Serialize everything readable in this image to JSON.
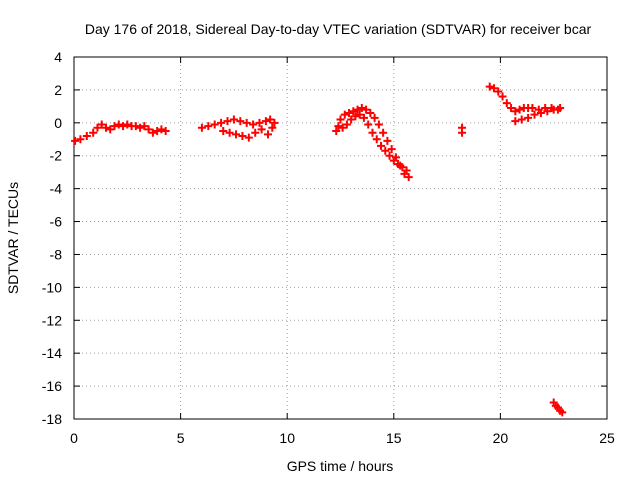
{
  "chart_data": {
    "type": "scatter",
    "title": "Day 176 of 2018, Sidereal Day-to-day VTEC variation (SDTVAR) for receiver bcar",
    "xlabel": "GPS time / hours",
    "ylabel": "SDTVAR / TECUs",
    "xlim": [
      0,
      25
    ],
    "ylim": [
      -18,
      4
    ],
    "xticks": [
      0,
      5,
      10,
      15,
      20,
      25
    ],
    "yticks": [
      -18,
      -16,
      -14,
      -12,
      -10,
      -8,
      -6,
      -4,
      -2,
      0,
      2,
      4
    ],
    "grid": true,
    "marker": "+",
    "colors": {
      "series": "#ff0000",
      "grid": "#a0a0a0",
      "axis": "#000000"
    },
    "series": [
      {
        "name": "bcar",
        "x": [
          0.05,
          0.3,
          0.6,
          0.9,
          1.1,
          1.3,
          1.5,
          1.7,
          1.9,
          2.1,
          2.3,
          2.5,
          2.7,
          2.9,
          3.1,
          3.3,
          3.5,
          3.7,
          3.9,
          4.1,
          4.3,
          6.0,
          6.3,
          6.6,
          6.9,
          7.2,
          7.5,
          7.8,
          8.1,
          8.4,
          8.7,
          9.0,
          9.2,
          9.4,
          7.0,
          7.3,
          7.6,
          7.9,
          8.2,
          8.5,
          8.8,
          9.1,
          9.3,
          12.3,
          12.5,
          12.7,
          12.9,
          13.1,
          13.3,
          13.5,
          13.7,
          13.9,
          14.1,
          14.3,
          14.5,
          14.7,
          14.9,
          15.1,
          15.3,
          15.5,
          15.7,
          12.4,
          12.6,
          12.8,
          13.0,
          13.2,
          13.4,
          13.6,
          13.8,
          14.0,
          14.2,
          14.4,
          14.6,
          14.8,
          15.0,
          15.2,
          15.4,
          15.6,
          18.2,
          18.2,
          19.5,
          19.7,
          19.9,
          20.1,
          20.3,
          20.5,
          20.7,
          20.9,
          21.1,
          21.3,
          21.5,
          21.8,
          22.1,
          22.4,
          22.7,
          20.7,
          21.0,
          21.3,
          21.6,
          21.9,
          22.2,
          22.5,
          22.8,
          22.5,
          22.6,
          22.7,
          22.8,
          22.9
        ],
        "y": [
          -1.1,
          -1.0,
          -0.8,
          -0.6,
          -0.3,
          -0.1,
          -0.3,
          -0.4,
          -0.2,
          -0.1,
          -0.2,
          -0.1,
          -0.2,
          -0.2,
          -0.3,
          -0.2,
          -0.4,
          -0.6,
          -0.5,
          -0.4,
          -0.5,
          -0.3,
          -0.2,
          -0.1,
          0.0,
          0.1,
          0.2,
          0.1,
          0.0,
          -0.1,
          0.0,
          0.1,
          0.2,
          0.0,
          -0.5,
          -0.6,
          -0.7,
          -0.8,
          -0.9,
          -0.6,
          -0.4,
          -0.7,
          -0.3,
          -0.5,
          0.2,
          0.5,
          0.6,
          0.7,
          0.8,
          0.9,
          0.8,
          0.6,
          0.3,
          -0.1,
          -0.6,
          -1.1,
          -1.6,
          -2.1,
          -2.6,
          -3.1,
          -3.3,
          -0.2,
          -0.3,
          -0.1,
          0.2,
          0.4,
          0.5,
          0.3,
          -0.1,
          -0.6,
          -1.0,
          -1.4,
          -1.7,
          -2.0,
          -2.3,
          -2.5,
          -2.7,
          -2.9,
          -0.3,
          -0.6,
          2.2,
          2.1,
          1.9,
          1.6,
          1.2,
          0.9,
          0.7,
          0.8,
          0.9,
          0.9,
          0.9,
          0.8,
          0.9,
          0.9,
          0.8,
          0.1,
          0.2,
          0.3,
          0.5,
          0.6,
          0.7,
          0.8,
          0.9,
          -17.0,
          -17.2,
          -17.3,
          -17.5,
          -17.6
        ]
      }
    ]
  }
}
